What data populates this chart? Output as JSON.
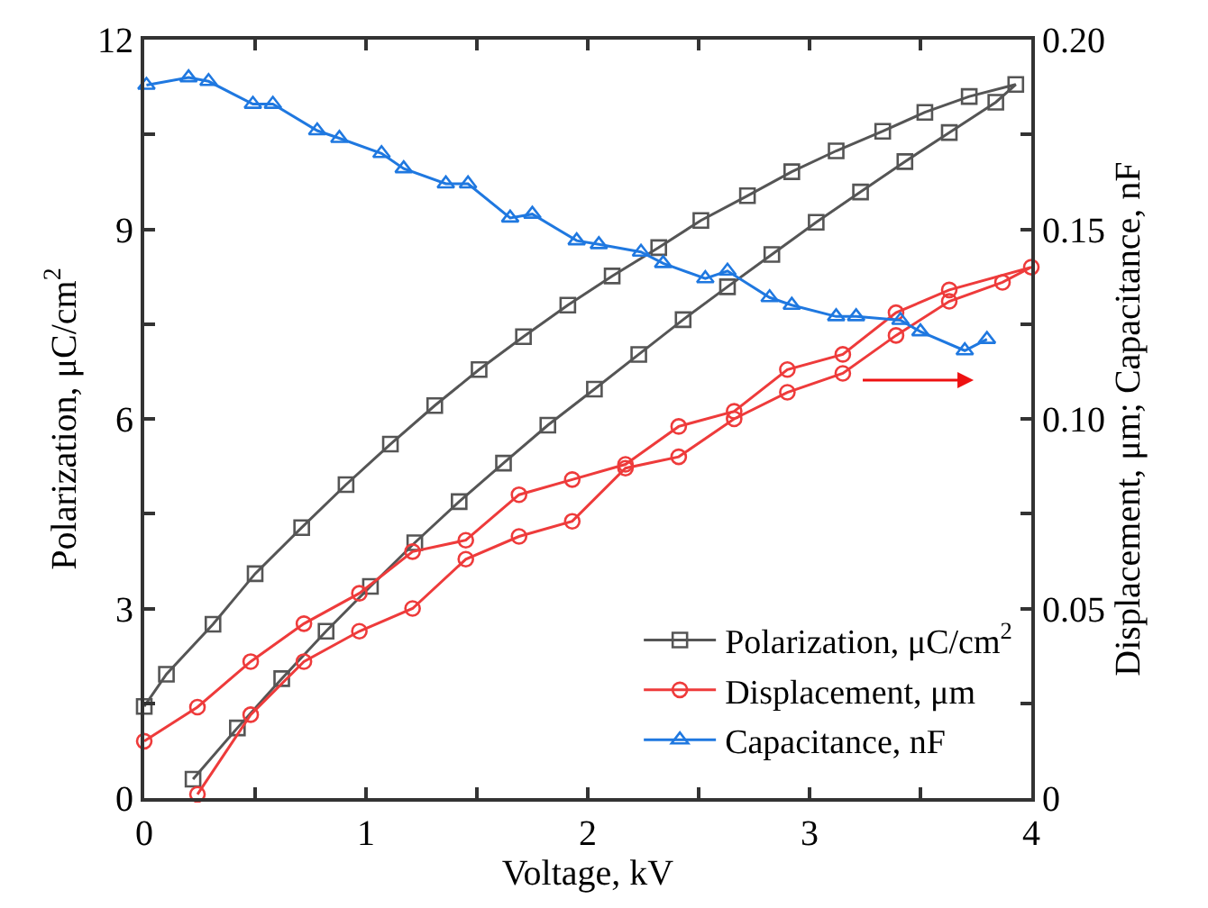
{
  "chart_data": {
    "type": "line",
    "xlabel": "Voltage, kV",
    "ylabel": "Polarization, μC/cm$^{2}$",
    "y2label": "Displacement, μm; Capacitance, nF",
    "xlim": [
      0,
      4
    ],
    "xticks": [
      0,
      {
        "value": 0.5,
        "label": null
      },
      1,
      {
        "value": 1.5,
        "label": null
      },
      2,
      {
        "value": 2.5,
        "label": null
      },
      3,
      {
        "value": 3.5,
        "label": null
      },
      4
    ],
    "ylim": [
      0,
      12
    ],
    "yticks": [
      0,
      {
        "value": 1.5,
        "label": null
      },
      3,
      {
        "value": 4.5,
        "label": null
      },
      6,
      {
        "value": 7.5,
        "label": null
      },
      9,
      {
        "value": 10.5,
        "label": null
      },
      12
    ],
    "y2lim": [
      0,
      0.2
    ],
    "y2ticks": [
      0,
      {
        "value": 0.025,
        "label": null
      },
      {
        "value": 0.05,
        "label": "0.05"
      },
      {
        "value": 0.075,
        "label": null
      },
      {
        "value": 0.1,
        "label": "0.10"
      },
      {
        "value": 0.125,
        "label": null
      },
      {
        "value": 0.15,
        "label": "0.15"
      },
      {
        "value": 0.175,
        "label": null
      },
      {
        "value": 0.2,
        "label": "0.20"
      }
    ],
    "legend": "bottom right",
    "line_style": "solid",
    "series": [
      {
        "name": "Polarization, μC/cm$^{2}$",
        "color": "#555555",
        "marker": "square",
        "x": [
          0.22,
          0.42,
          0.62,
          0.82,
          1.02,
          1.22,
          1.42,
          1.62,
          1.82,
          2.03,
          2.23,
          2.43,
          2.63,
          2.83,
          3.03,
          3.23,
          3.43,
          3.63,
          3.84,
          3.93,
          3.72,
          3.52,
          3.33,
          3.12,
          2.92,
          2.72,
          2.51,
          2.32,
          2.11,
          1.91,
          1.71,
          1.51,
          1.31,
          1.11,
          0.91,
          0.71,
          0.5,
          0.31,
          0.1,
          0
        ],
        "values": [
          0.3,
          1.11,
          1.89,
          2.64,
          3.35,
          4.04,
          4.69,
          5.3,
          5.9,
          6.47,
          7.02,
          7.57,
          8.09,
          8.6,
          9.11,
          9.59,
          10.07,
          10.53,
          11.01,
          11.29,
          11.1,
          10.85,
          10.55,
          10.24,
          9.91,
          9.53,
          9.14,
          8.71,
          8.26,
          7.8,
          7.3,
          6.78,
          6.21,
          5.6,
          4.96,
          4.28,
          3.55,
          2.75,
          1.96,
          1.45
        ]
      },
      {
        "name": "Displacement, μm",
        "color": "#ee3b3b",
        "marker": "circle",
        "axis": "y2",
        "x": [
          0.24,
          0.48,
          0.72,
          0.97,
          1.21,
          1.45,
          1.69,
          1.93,
          2.17,
          2.41,
          2.66,
          2.9,
          3.15,
          3.39,
          3.63,
          3.87,
          4.0,
          3.63,
          3.39,
          3.15,
          2.9,
          2.66,
          2.41,
          2.17,
          1.93,
          1.69,
          1.45,
          1.21,
          0.97,
          0.72,
          0.48,
          0.24,
          0
        ],
        "values": [
          0.001,
          0.022,
          0.036,
          0.044,
          0.05,
          0.063,
          0.069,
          0.073,
          0.087,
          0.09,
          0.1,
          0.107,
          0.112,
          0.122,
          0.131,
          0.136,
          0.14,
          0.134,
          0.128,
          0.117,
          0.113,
          0.102,
          0.098,
          0.088,
          0.084,
          0.08,
          0.068,
          0.065,
          0.054,
          0.046,
          0.036,
          0.024,
          0.015
        ]
      },
      {
        "name": "Capacitance, nF",
        "color": "#1f78e0",
        "marker": "triangle",
        "axis": "y2",
        "x": [
          0.01,
          0.2,
          0.29,
          0.49,
          0.58,
          0.78,
          0.88,
          1.07,
          1.17,
          1.36,
          1.46,
          1.65,
          1.75,
          1.95,
          2.05,
          2.24,
          2.34,
          2.53,
          2.63,
          2.82,
          2.92,
          3.12,
          3.21,
          3.41,
          3.5,
          3.7,
          3.8
        ],
        "values": [
          0.188,
          0.19,
          0.189,
          0.183,
          0.183,
          0.176,
          0.174,
          0.17,
          0.166,
          0.162,
          0.162,
          0.153,
          0.154,
          0.147,
          0.146,
          0.144,
          0.141,
          0.137,
          0.139,
          0.132,
          0.13,
          0.127,
          0.127,
          0.126,
          0.123,
          0.118,
          0.121
        ]
      }
    ]
  }
}
